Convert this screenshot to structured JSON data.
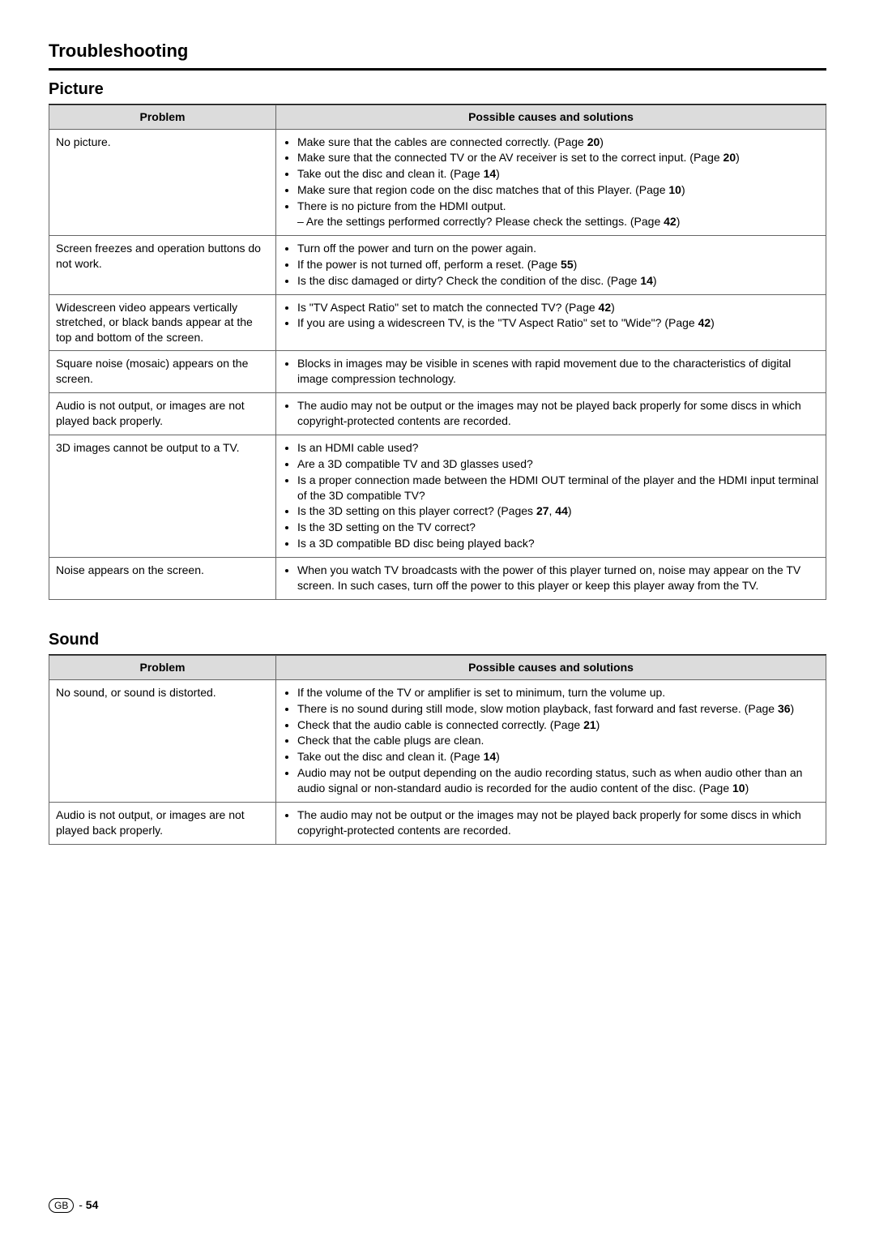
{
  "page": {
    "title": "Troubleshooting",
    "footer_region": "GB",
    "footer_sep": " - ",
    "footer_page": "54"
  },
  "sections": [
    {
      "title": "Picture",
      "headers": {
        "problem": "Problem",
        "solutions": "Possible causes and solutions"
      },
      "rows": [
        {
          "problem": "No picture.",
          "solutions": [
            {
              "parts": [
                {
                  "t": "Make sure that the cables are connected correctly. (Page "
                },
                {
                  "t": "20",
                  "b": true
                },
                {
                  "t": ")"
                }
              ]
            },
            {
              "parts": [
                {
                  "t": "Make sure that the connected TV or the AV receiver is set to the correct input. (Page "
                },
                {
                  "t": "20",
                  "b": true
                },
                {
                  "t": ")"
                }
              ]
            },
            {
              "parts": [
                {
                  "t": "Take out the disc and clean it. (Page "
                },
                {
                  "t": "14",
                  "b": true
                },
                {
                  "t": ")"
                }
              ]
            },
            {
              "parts": [
                {
                  "t": "Make sure that region code on the disc matches that of this Player. (Page "
                },
                {
                  "t": "10",
                  "b": true
                },
                {
                  "t": ")"
                }
              ]
            },
            {
              "parts": [
                {
                  "t": "There is no picture from the HDMI output."
                }
              ],
              "sub": {
                "parts": [
                  {
                    "t": "– Are the settings performed correctly? Please check the settings. (Page "
                  },
                  {
                    "t": "42",
                    "b": true
                  },
                  {
                    "t": ")"
                  }
                ]
              }
            }
          ]
        },
        {
          "problem": "Screen freezes and operation buttons do not work.",
          "solutions": [
            {
              "parts": [
                {
                  "t": "Turn off the power and turn on the power again."
                }
              ]
            },
            {
              "parts": [
                {
                  "t": "If the power is not turned off, perform a reset. (Page "
                },
                {
                  "t": "55",
                  "b": true
                },
                {
                  "t": ")"
                }
              ]
            },
            {
              "parts": [
                {
                  "t": "Is the disc damaged or dirty? Check the condition of the disc. (Page "
                },
                {
                  "t": "14",
                  "b": true
                },
                {
                  "t": ")"
                }
              ]
            }
          ]
        },
        {
          "problem": "Widescreen video appears vertically stretched, or black bands appear at the top and bottom of the screen.",
          "solutions": [
            {
              "parts": [
                {
                  "t": "Is \"TV Aspect Ratio\" set to match the connected TV? (Page "
                },
                {
                  "t": "42",
                  "b": true
                },
                {
                  "t": ")"
                }
              ]
            },
            {
              "parts": [
                {
                  "t": "If you are using a widescreen TV, is the \"TV Aspect Ratio\" set to \"Wide\"? (Page "
                },
                {
                  "t": "42",
                  "b": true
                },
                {
                  "t": ")"
                }
              ]
            }
          ]
        },
        {
          "problem": "Square noise (mosaic) appears on the screen.",
          "solutions": [
            {
              "parts": [
                {
                  "t": "Blocks in images may be visible in scenes with rapid movement due to the characteristics of digital image compression technology."
                }
              ]
            }
          ]
        },
        {
          "problem": "Audio is not output, or images are not played back properly.",
          "solutions": [
            {
              "parts": [
                {
                  "t": "The audio may not be output or the images may not be played back properly for some discs in which copyright-protected contents are recorded."
                }
              ]
            }
          ]
        },
        {
          "problem": "3D images cannot be output to a TV.",
          "solutions": [
            {
              "parts": [
                {
                  "t": "Is an HDMI cable used?"
                }
              ]
            },
            {
              "parts": [
                {
                  "t": "Are a 3D compatible TV and 3D glasses used?"
                }
              ]
            },
            {
              "parts": [
                {
                  "t": "Is a proper connection made between the HDMI OUT terminal of the player and the HDMI input terminal of the 3D compatible TV?"
                }
              ]
            },
            {
              "parts": [
                {
                  "t": "Is the 3D setting on this player correct? (Pages "
                },
                {
                  "t": "27",
                  "b": true
                },
                {
                  "t": ", "
                },
                {
                  "t": "44",
                  "b": true
                },
                {
                  "t": ")"
                }
              ]
            },
            {
              "parts": [
                {
                  "t": "Is the 3D setting on the TV correct?"
                }
              ]
            },
            {
              "parts": [
                {
                  "t": "Is a 3D compatible BD disc being played back?"
                }
              ]
            }
          ]
        },
        {
          "problem": "Noise appears on the screen.",
          "solutions": [
            {
              "parts": [
                {
                  "t": "When you watch TV broadcasts with the power of this player turned on, noise may appear on the TV screen.  In such cases, turn off the power to this player or keep this player away from the TV."
                }
              ]
            }
          ]
        }
      ]
    },
    {
      "title": "Sound",
      "headers": {
        "problem": "Problem",
        "solutions": "Possible causes and solutions"
      },
      "rows": [
        {
          "problem": "No sound, or sound is distorted.",
          "solutions": [
            {
              "parts": [
                {
                  "t": "If the volume of the TV or amplifier is set to minimum, turn the volume up."
                }
              ]
            },
            {
              "parts": [
                {
                  "t": "There is no sound during still mode, slow motion playback, fast forward and fast reverse. (Page "
                },
                {
                  "t": "36",
                  "b": true
                },
                {
                  "t": ")"
                }
              ]
            },
            {
              "parts": [
                {
                  "t": "Check that the audio cable is connected correctly. (Page "
                },
                {
                  "t": "21",
                  "b": true
                },
                {
                  "t": ")"
                }
              ]
            },
            {
              "parts": [
                {
                  "t": "Check that the cable plugs are clean."
                }
              ]
            },
            {
              "parts": [
                {
                  "t": "Take out the disc and clean it. (Page "
                },
                {
                  "t": "14",
                  "b": true
                },
                {
                  "t": ")"
                }
              ]
            },
            {
              "parts": [
                {
                  "t": "Audio may not be output depending on the audio recording status, such as when audio other than an audio signal or non-standard audio is recorded for the audio content of the disc. (Page "
                },
                {
                  "t": "10",
                  "b": true
                },
                {
                  "t": ")"
                }
              ]
            }
          ]
        },
        {
          "problem": "Audio is not output, or images are not played back properly.",
          "solutions": [
            {
              "parts": [
                {
                  "t": "The audio may not be output or the images may not be played back properly for some discs in which copyright-protected contents are recorded."
                }
              ]
            }
          ]
        }
      ]
    }
  ]
}
